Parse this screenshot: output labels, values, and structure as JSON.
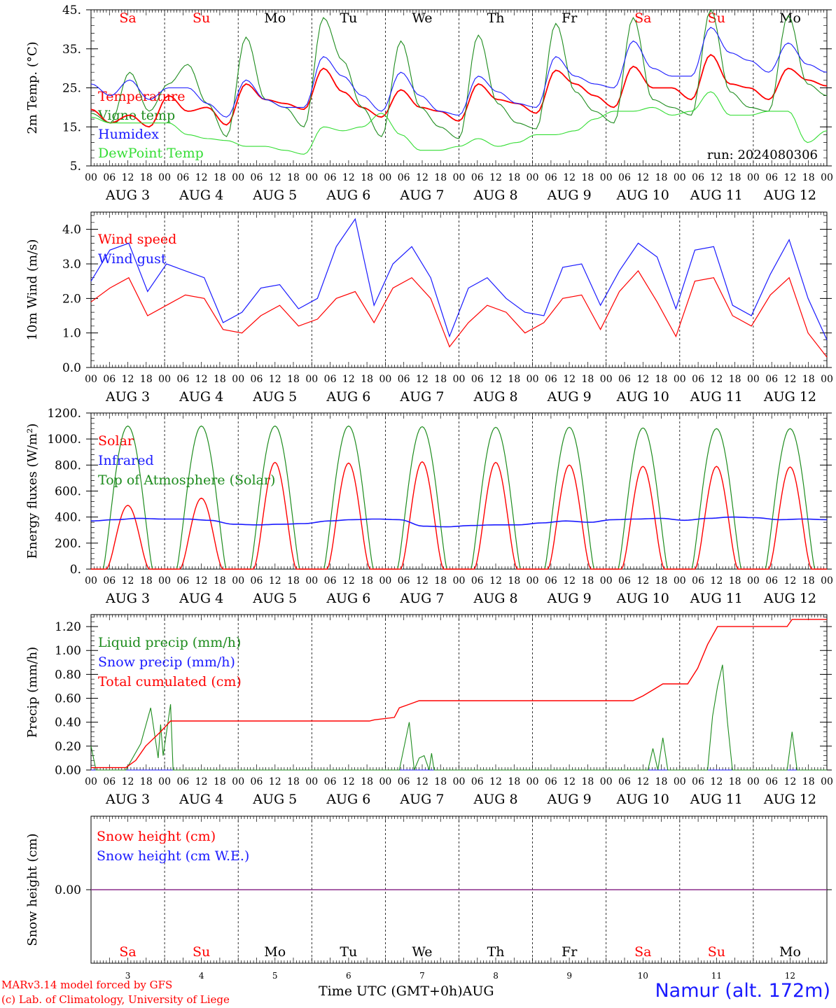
{
  "colors": {
    "red": "#ff0000",
    "green": "#1e8c1e",
    "blue": "#1a1aff",
    "lime": "#33dd33",
    "purple": "#8c2d8c"
  },
  "x_axis": {
    "hour_ticks": [
      "00",
      "06",
      "12",
      "18"
    ],
    "final_tick": "00",
    "date_labels": [
      "AUG  3",
      "AUG  4",
      "AUG  5",
      "AUG  6",
      "AUG  7",
      "AUG  8",
      "AUG  9",
      "AUG 10",
      "AUG 11",
      "AUG 12"
    ],
    "bottom_day_numbers": [
      "3",
      "4",
      "5",
      "6",
      "7",
      "8",
      "9",
      "10",
      "11",
      "12"
    ]
  },
  "weekdays": [
    {
      "label": "Sa",
      "color": "#ff0000"
    },
    {
      "label": "Su",
      "color": "#ff0000"
    },
    {
      "label": "Mo",
      "color": "#000000"
    },
    {
      "label": "Tu",
      "color": "#000000"
    },
    {
      "label": "We",
      "color": "#000000"
    },
    {
      "label": "Th",
      "color": "#000000"
    },
    {
      "label": "Fr",
      "color": "#000000"
    },
    {
      "label": "Sa",
      "color": "#ff0000"
    },
    {
      "label": "Su",
      "color": "#ff0000"
    },
    {
      "label": "Mo",
      "color": "#000000"
    }
  ],
  "footer": {
    "credit_line1": "MARv3.14 model forced by GFS",
    "credit_line2": "(c) Lab. of Climatology, University of Liege",
    "xlabel": "Time UTC (GMT+0h)",
    "month": "AUG",
    "station": "Namur (alt. 172m)"
  },
  "chart_data": [
    {
      "type": "line",
      "ylabel": "2m Temp. (°C)",
      "ylim": [
        5,
        45
      ],
      "yticks": [
        5,
        15,
        25,
        35,
        45
      ],
      "ytick_labels": [
        "5.",
        "15.",
        "25.",
        "35.",
        "45."
      ],
      "annotation": "run: 2024080306",
      "series": [
        {
          "name": "Temperature",
          "color": "#ff0000",
          "values": [
            19.5,
            16,
            18,
            15,
            23,
            19,
            20,
            15.5,
            26,
            22,
            21,
            19.5,
            30,
            24,
            20,
            17.5,
            24.5,
            20,
            19,
            16.5,
            26,
            22,
            21,
            18.5,
            29.5,
            26,
            23,
            20,
            30.5,
            25,
            25,
            22,
            33.5,
            26,
            25,
            22,
            30,
            27,
            25.5
          ]
        },
        {
          "name": "Vigne temp",
          "color": "#1e8c1e",
          "values": [
            18.5,
            16,
            29,
            19,
            26,
            31,
            21,
            12.5,
            38,
            22,
            20,
            15,
            43,
            32,
            20,
            12.5,
            37,
            20,
            15,
            12,
            38.5,
            21,
            16,
            14.5,
            41.5,
            24,
            19,
            16,
            43,
            22,
            20,
            18,
            45,
            24,
            20,
            19,
            43.5,
            26,
            23
          ]
        },
        {
          "name": "Humidex",
          "color": "#1a1aff",
          "values": [
            26,
            23,
            27,
            22,
            25,
            25,
            21,
            17.5,
            27,
            22,
            20,
            20,
            33,
            28,
            23,
            19,
            29,
            23,
            19,
            18,
            28,
            24,
            21,
            20,
            33,
            28,
            26,
            25,
            37,
            30,
            28,
            28,
            40.5,
            34,
            32,
            29,
            36.5,
            31,
            29
          ]
        },
        {
          "name": "DewPoint Temp",
          "color": "#33dd33",
          "values": [
            17.5,
            16,
            16,
            16,
            16,
            13,
            12,
            11.5,
            10,
            10,
            9,
            8,
            15,
            14,
            15,
            18.5,
            13,
            9,
            9,
            10,
            12,
            10,
            11,
            13,
            13,
            14,
            17,
            19,
            19,
            20,
            18,
            19,
            24,
            18,
            18,
            19,
            19,
            11,
            14
          ]
        }
      ]
    },
    {
      "type": "line",
      "ylabel": "10m Wind (m/s)",
      "ylim": [
        0,
        4.5
      ],
      "yticks": [
        0,
        1,
        2,
        3,
        4
      ],
      "ytick_labels": [
        "0.0",
        "1.0",
        "2.0",
        "3.0",
        "4.0"
      ],
      "series": [
        {
          "name": "Wind speed",
          "color": "#ff0000",
          "values": [
            1.9,
            2.3,
            2.6,
            1.5,
            1.8,
            2.1,
            2.0,
            1.1,
            1.0,
            1.5,
            1.8,
            1.2,
            1.4,
            2.0,
            2.2,
            1.3,
            2.3,
            2.6,
            2.0,
            0.6,
            1.3,
            1.8,
            1.6,
            1.0,
            1.3,
            2.0,
            2.1,
            1.1,
            2.2,
            2.8,
            1.9,
            0.9,
            2.5,
            2.6,
            1.5,
            1.2,
            2.1,
            2.6,
            1.0,
            0.3
          ]
        },
        {
          "name": "Wind gust",
          "color": "#1a1aff",
          "values": [
            2.5,
            3.4,
            3.6,
            2.2,
            3.0,
            2.8,
            2.6,
            1.3,
            1.6,
            2.3,
            2.4,
            1.7,
            2.0,
            3.5,
            4.3,
            1.8,
            3.0,
            3.5,
            2.6,
            0.9,
            2.3,
            2.6,
            2.0,
            1.6,
            1.5,
            2.9,
            3.0,
            1.8,
            2.8,
            3.6,
            3.2,
            1.7,
            3.4,
            3.5,
            1.8,
            1.5,
            2.7,
            3.7,
            2.0,
            0.8
          ]
        }
      ]
    },
    {
      "type": "line",
      "ylabel": "Energy fluxes (W/m²)",
      "ylim": [
        0,
        1200
      ],
      "yticks": [
        0,
        200,
        400,
        600,
        800,
        1000,
        1200
      ],
      "ytick_labels": [
        "0.",
        "200.",
        "400.",
        "600.",
        "800.",
        "1000.",
        "1200."
      ],
      "series": [
        {
          "name": "Solar",
          "color": "#ff0000",
          "peaks": [
            490,
            545,
            820,
            815,
            825,
            820,
            800,
            790,
            790,
            785
          ]
        },
        {
          "name": "Infrared",
          "color": "#1a1aff",
          "values": [
            370,
            380,
            390,
            385,
            385,
            375,
            345,
            340,
            345,
            350,
            370,
            380,
            385,
            380,
            330,
            325,
            335,
            340,
            340,
            355,
            370,
            360,
            380,
            385,
            390,
            375,
            390,
            400,
            395,
            380,
            385,
            380
          ]
        },
        {
          "name": "Top of Atmosphere (Solar)",
          "color": "#1e8c1e",
          "peaks": [
            1100,
            1100,
            1100,
            1100,
            1095,
            1090,
            1090,
            1085,
            1080,
            1080
          ]
        }
      ]
    },
    {
      "type": "line",
      "ylabel": "Precip (mm/h)",
      "ylim": [
        0,
        1.3
      ],
      "yticks": [
        0,
        0.2,
        0.4,
        0.6,
        0.8,
        1.0,
        1.2
      ],
      "ytick_labels": [
        "0.00",
        "0.20",
        "0.40",
        "0.60",
        "0.80",
        "1.00",
        "1.20"
      ],
      "series": [
        {
          "name": "Liquid precip (mm/h)",
          "color": "#1e8c1e",
          "values": [
            [
              0,
              0.2
            ],
            [
              6,
              0
            ],
            [
              42,
              0
            ],
            [
              60,
              0.22
            ],
            [
              72,
              0.52
            ],
            [
              81,
              0.1
            ],
            [
              84,
              0.38
            ],
            [
              87,
              0.12
            ],
            [
              96,
              0.55
            ],
            [
              99,
              0
            ],
            [
              372,
              0
            ],
            [
              384,
              0.4
            ],
            [
              390,
              0
            ],
            [
              396,
              0.1
            ],
            [
              402,
              0.12
            ],
            [
              408,
              0
            ],
            [
              411,
              0.14
            ],
            [
              414,
              0
            ],
            [
              672,
              0
            ],
            [
              678,
              0.18
            ],
            [
              684,
              0
            ],
            [
              690,
              0.27
            ],
            [
              696,
              0
            ],
            [
              744,
              0
            ],
            [
              750,
              0.45
            ],
            [
              756,
              0.7
            ],
            [
              762,
              0.88
            ],
            [
              768,
              0.4
            ],
            [
              774,
              0
            ],
            [
              840,
              0
            ],
            [
              846,
              0.32
            ],
            [
              852,
              0
            ],
            [
              888,
              0
            ]
          ]
        },
        {
          "name": "Snow precip (mm/h)",
          "color": "#1a1aff",
          "values": [
            [
              0,
              0
            ],
            [
              888,
              0
            ]
          ]
        },
        {
          "name": "Total cumulated (cm)",
          "color": "#ff0000",
          "values": [
            [
              0,
              0.02
            ],
            [
              42,
              0.02
            ],
            [
              54,
              0.08
            ],
            [
              66,
              0.2
            ],
            [
              84,
              0.32
            ],
            [
              96,
              0.41
            ],
            [
              336,
              0.41
            ],
            [
              342,
              0.42
            ],
            [
              366,
              0.44
            ],
            [
              372,
              0.52
            ],
            [
              384,
              0.55
            ],
            [
              396,
              0.58
            ],
            [
              654,
              0.58
            ],
            [
              666,
              0.62
            ],
            [
              678,
              0.67
            ],
            [
              690,
              0.72
            ],
            [
              720,
              0.72
            ],
            [
              732,
              0.85
            ],
            [
              744,
              1.05
            ],
            [
              756,
              1.2
            ],
            [
              840,
              1.2
            ],
            [
              846,
              1.26
            ],
            [
              888,
              1.26
            ]
          ]
        }
      ]
    },
    {
      "type": "line",
      "ylabel": "Snow height (cm)",
      "ylim": [
        -1,
        1
      ],
      "yticks": [
        0
      ],
      "ytick_labels": [
        "0.00"
      ],
      "series": [
        {
          "name": "Snow height (cm)",
          "color": "#ff0000",
          "values": [
            0
          ]
        },
        {
          "name": "Snow height (cm W.E.)",
          "color": "#1a1aff",
          "values": [
            0
          ]
        }
      ]
    }
  ]
}
